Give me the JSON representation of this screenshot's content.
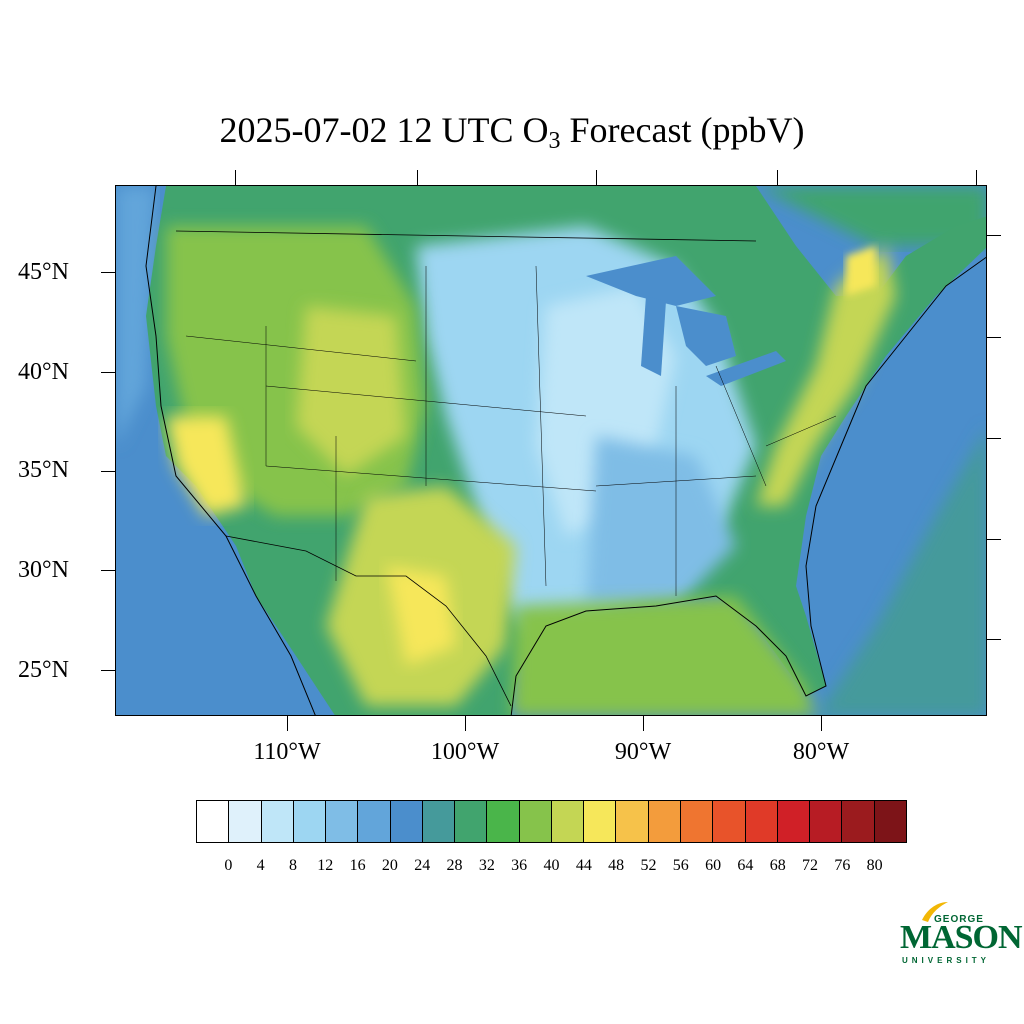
{
  "title": {
    "prefix": "2025-07-02 12 UTC O",
    "subscript": "3",
    "suffix": " Forecast (ppbV)"
  },
  "map": {
    "lon_range": [
      -120,
      -71
    ],
    "lat_range": [
      22.5,
      49.5
    ],
    "lat_labels": [
      "45°N",
      "40°N",
      "35°N",
      "30°N",
      "25°N"
    ],
    "lon_labels": [
      "110°W",
      "100°W",
      "90°W",
      "80°W"
    ]
  },
  "colorbar": {
    "labels": [
      "0",
      "4",
      "8",
      "12",
      "16",
      "20",
      "24",
      "28",
      "32",
      "36",
      "40",
      "44",
      "48",
      "52",
      "56",
      "60",
      "64",
      "68",
      "72",
      "76",
      "80"
    ],
    "colors": [
      "#ffffff",
      "#dff1fb",
      "#bfe6f8",
      "#9dd6f2",
      "#7fbde6",
      "#62a5da",
      "#4b8ecc",
      "#459a9b",
      "#41a46e",
      "#4ab54a",
      "#86c34b",
      "#c4d654",
      "#f6e75a",
      "#f6c24a",
      "#f39c3c",
      "#ef7530",
      "#e8532a",
      "#e03a28",
      "#d02027",
      "#b71c24",
      "#9b1b1e",
      "#7d1418"
    ]
  },
  "logo": {
    "top": "GEORGE",
    "middle": "MASON",
    "bottom": "UNIVERSITY"
  }
}
